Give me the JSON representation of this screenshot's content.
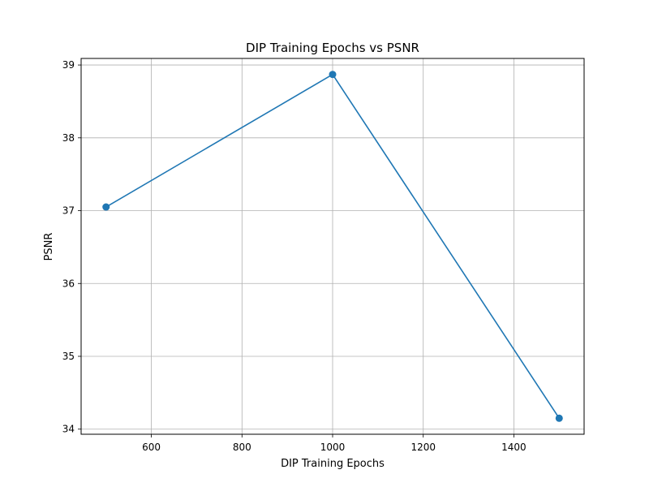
{
  "chart_data": {
    "type": "line",
    "title": "DIP Training Epochs vs PSNR",
    "xlabel": "DIP Training Epochs",
    "ylabel": "PSNR",
    "x": [
      500,
      1000,
      1500
    ],
    "series": [
      {
        "values": [
          37.05,
          38.87,
          34.15
        ]
      }
    ],
    "xlim": [
      445,
      1555
    ],
    "ylim": [
      33.93,
      39.09
    ],
    "xticks": [
      600,
      800,
      1000,
      1200,
      1400
    ],
    "yticks": [
      34,
      35,
      36,
      37,
      38,
      39
    ],
    "grid": true,
    "markers": true,
    "colors": {
      "line": "#1f77b4",
      "grid": "#b0b0b0"
    }
  }
}
